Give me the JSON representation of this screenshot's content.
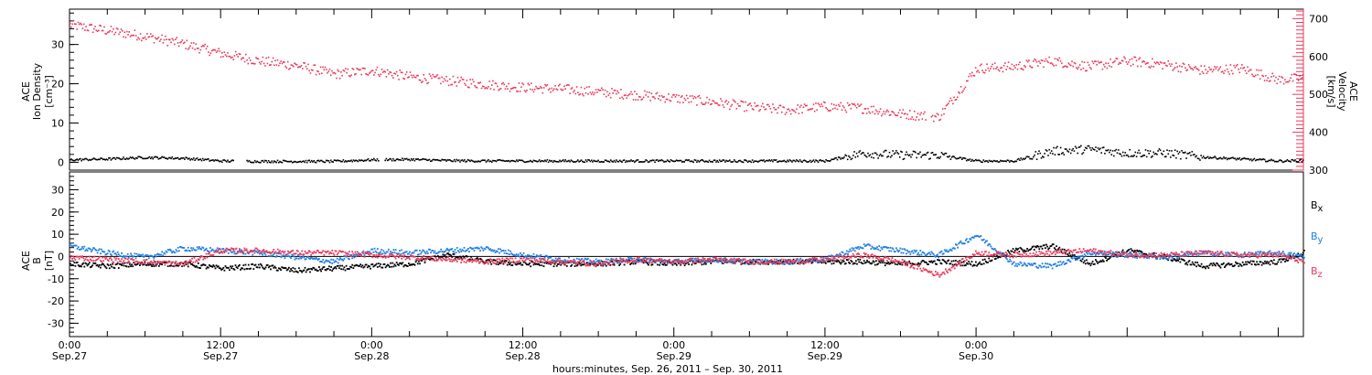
{
  "colors": {
    "black": "#000000",
    "blue": "#1e7fe0",
    "red": "#e83a5c"
  },
  "chart_data": [
    {
      "type": "scatter",
      "panel": "top",
      "ylabel": [
        "ACE",
        "Ion Density",
        "[cm⁻³]"
      ],
      "ylim": [
        -2,
        39
      ],
      "yticks": [
        0,
        10,
        20,
        30
      ],
      "y2label": [
        "ACE",
        "Velocity",
        "[km/s]"
      ],
      "y2lim": [
        300,
        725
      ],
      "y2ticks": [
        300,
        400,
        500,
        600,
        700
      ],
      "series": [
        {
          "name": "Velocity",
          "axis": "right",
          "color": "red",
          "x": [
            0,
            3,
            6,
            9,
            12,
            15,
            18,
            21,
            24,
            27,
            30,
            33,
            36,
            39,
            42,
            45,
            48,
            51,
            54,
            57,
            60,
            63,
            66,
            69,
            72,
            75,
            78,
            81,
            84,
            87,
            90,
            93,
            96,
            98
          ],
          "y": [
            685,
            670,
            655,
            635,
            610,
            590,
            578,
            555,
            565,
            548,
            538,
            528,
            520,
            516,
            508,
            500,
            492,
            482,
            468,
            460,
            470,
            465,
            450,
            442,
            570,
            575,
            590,
            575,
            590,
            580,
            565,
            570,
            540,
            545
          ]
        },
        {
          "name": "Ion Density",
          "axis": "left",
          "color": "black",
          "x": [
            0,
            3,
            6,
            9,
            12,
            15,
            18,
            21,
            24,
            27,
            30,
            33,
            36,
            39,
            42,
            45,
            48,
            51,
            54,
            57,
            60,
            63,
            66,
            69,
            72,
            75,
            78,
            81,
            84,
            87,
            90,
            93,
            96,
            98
          ],
          "y": [
            0.8,
            1.0,
            1.4,
            1.2,
            0.5,
            0.4,
            0.4,
            0.4,
            0.8,
            0.9,
            0.6,
            0.5,
            0.5,
            0.5,
            0.5,
            0.5,
            0.5,
            0.5,
            0.5,
            0.5,
            0.5,
            2.5,
            2.0,
            2.0,
            0.5,
            0.5,
            3.0,
            3.5,
            2.5,
            2.5,
            1.5,
            1.0,
            0.5,
            0.6
          ]
        }
      ]
    },
    {
      "type": "line",
      "panel": "bottom",
      "ylabel": [
        "ACE",
        "B",
        "[nT]"
      ],
      "ylim": [
        -36,
        38
      ],
      "yticks": [
        -30,
        -20,
        -10,
        0,
        10,
        20,
        30
      ],
      "series": [
        {
          "name": "Bx",
          "color": "black",
          "x": [
            0,
            3,
            6,
            9,
            12,
            15,
            18,
            21,
            24,
            27,
            30,
            33,
            36,
            39,
            42,
            45,
            48,
            51,
            54,
            57,
            60,
            63,
            66,
            69,
            72,
            75,
            78,
            81,
            84,
            87,
            90,
            93,
            96,
            98
          ],
          "y": [
            -3,
            -4,
            -3,
            -3,
            -5,
            -4,
            -6,
            -5,
            -4,
            -3,
            1,
            -2,
            -3,
            -3,
            -3,
            -2,
            -3,
            -2,
            -2,
            -2,
            -2,
            -2,
            -3,
            -2,
            -3,
            3,
            5,
            -3,
            3,
            0,
            -4,
            -3,
            -2,
            2
          ]
        },
        {
          "name": "By",
          "color": "blue",
          "x": [
            0,
            3,
            6,
            9,
            12,
            15,
            18,
            21,
            24,
            27,
            30,
            33,
            36,
            39,
            42,
            45,
            48,
            51,
            54,
            57,
            60,
            63,
            66,
            69,
            72,
            75,
            78,
            81,
            84,
            87,
            90,
            93,
            96,
            98
          ],
          "y": [
            5,
            2,
            0,
            4,
            3,
            2,
            0,
            -2,
            3,
            2,
            3,
            4,
            1,
            -1,
            -2,
            -1,
            -2,
            -1,
            -2,
            -2,
            -1,
            5,
            3,
            1,
            10,
            -3,
            -4,
            2,
            1,
            0,
            2,
            1,
            2,
            0
          ]
        },
        {
          "name": "Bz",
          "color": "red",
          "x": [
            0,
            3,
            6,
            9,
            12,
            15,
            18,
            21,
            24,
            27,
            30,
            33,
            36,
            39,
            42,
            45,
            48,
            51,
            54,
            57,
            60,
            63,
            66,
            69,
            72,
            75,
            78,
            81,
            84,
            87,
            90,
            93,
            96,
            98
          ],
          "y": [
            0,
            -1,
            -2,
            -3,
            3,
            3,
            2,
            2,
            1,
            0,
            -1,
            -2,
            -1,
            -2,
            -3,
            -1,
            -2,
            -1,
            -2,
            -2,
            -1,
            1,
            -2,
            -8,
            2,
            1,
            2,
            3,
            1,
            1,
            2,
            1,
            1,
            -2
          ]
        }
      ],
      "legend": [
        "Bx",
        "By",
        "Bz"
      ]
    }
  ],
  "xaxis": {
    "range_hours": [
      0,
      98
    ],
    "ticks": [
      {
        "h": 0,
        "top": "0:00",
        "bottom": "Sep.27"
      },
      {
        "h": 12,
        "top": "12:00",
        "bottom": "Sep.27"
      },
      {
        "h": 24,
        "top": "0:00",
        "bottom": "Sep.28"
      },
      {
        "h": 36,
        "top": "12:00",
        "bottom": "Sep.28"
      },
      {
        "h": 48,
        "top": "0:00",
        "bottom": "Sep.29"
      },
      {
        "h": 60,
        "top": "12:00",
        "bottom": "Sep.29"
      },
      {
        "h": 72,
        "top": "0:00",
        "bottom": "Sep.30"
      }
    ],
    "title": "hours:minutes, Sep. 26, 2011 – Sep. 30, 2011"
  },
  "legend_labels": {
    "bx": "B",
    "bx_sub": "x",
    "by": "B",
    "by_sub": "y",
    "bz": "B",
    "bz_sub": "z"
  }
}
